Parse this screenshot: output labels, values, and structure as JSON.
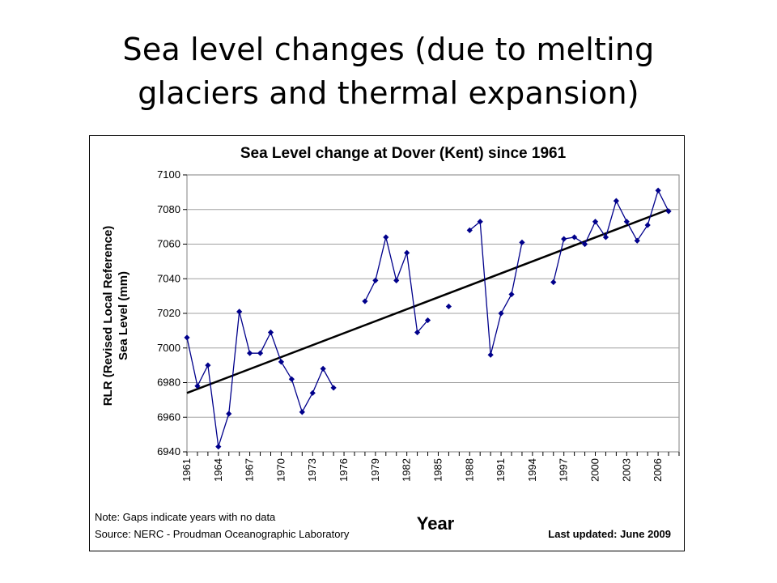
{
  "slide": {
    "title_line1": "Sea level changes (due to melting",
    "title_line2": "glaciers and thermal expansion)"
  },
  "chart_data": {
    "type": "line",
    "title": "Sea Level change at Dover (Kent) since 1961",
    "ylabel_line1": "RLR (Revised Local Reference)",
    "ylabel_line2": "Sea Level (mm)",
    "xlabel": "Year",
    "ylim": [
      6940,
      7100
    ],
    "yticks": [
      6940,
      6960,
      6980,
      7000,
      7020,
      7040,
      7060,
      7080,
      7100
    ],
    "xlim": [
      1961,
      2008
    ],
    "xticks": [
      1961,
      1964,
      1967,
      1970,
      1973,
      1976,
      1979,
      1982,
      1985,
      1988,
      1991,
      1994,
      1997,
      2000,
      2003,
      2006
    ],
    "grid": "horizontal",
    "series": [
      {
        "color": "#00008B",
        "marker": "diamond",
        "x": [
          1961,
          1962,
          1963,
          1964,
          1965,
          1966,
          1967,
          1968,
          1969,
          1970,
          1971,
          1972,
          1973,
          1974,
          1975,
          1976,
          1977,
          1978,
          1979,
          1980,
          1981,
          1982,
          1983,
          1984,
          1985,
          1986,
          1987,
          1988,
          1989,
          1990,
          1991,
          1992,
          1993,
          1994,
          1995,
          1996,
          1997,
          1998,
          1999,
          2000,
          2001,
          2002,
          2003,
          2004,
          2005,
          2006,
          2007,
          2008
        ],
        "y": [
          7006,
          6978,
          6990,
          6943,
          6962,
          7021,
          6997,
          6997,
          7009,
          6992,
          6982,
          6963,
          6974,
          6988,
          6977,
          null,
          null,
          7027,
          7039,
          7064,
          7039,
          7055,
          7009,
          7016,
          null,
          7024,
          null,
          7068,
          7073,
          6996,
          7020,
          7031,
          7061,
          null,
          null,
          7038,
          7063,
          7064,
          7060,
          7073,
          7064,
          7085,
          7073,
          7062,
          7071,
          7091,
          7079,
          null
        ]
      }
    ],
    "trendline": {
      "color": "#000000",
      "x": [
        1961,
        2007
      ],
      "y": [
        6974,
        7080
      ]
    },
    "notes": {
      "line1": "Note: Gaps indicate years with no data",
      "line2": "Source: NERC - Proudman Oceanographic Laboratory",
      "updated": "Last updated: June 2009"
    }
  }
}
